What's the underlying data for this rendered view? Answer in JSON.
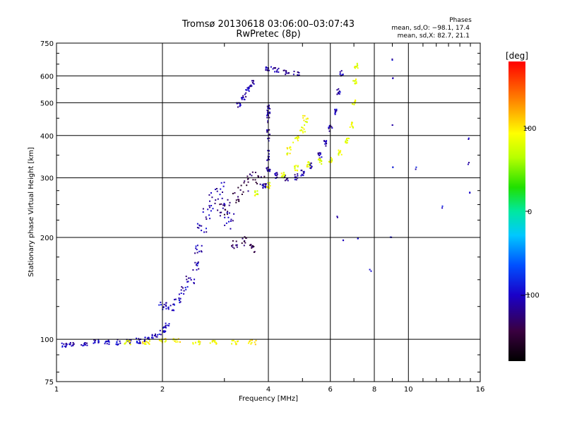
{
  "chart_data": {
    "type": "scatter",
    "title": "Tromsø 20130618 03:06:00–03:07:43",
    "subtitle": "RwPretec (8p)",
    "xlabel": "Frequency [MHz]",
    "ylabel": "Stationary phase Virtual Height [km]",
    "x_scale": "log",
    "y_scale": "log",
    "xlim": [
      1,
      16
    ],
    "ylim": [
      75,
      750
    ],
    "x_ticks": [
      1,
      2,
      4,
      6,
      8,
      10,
      16
    ],
    "x_tick_labels": [
      "1",
      "2",
      "4",
      "6",
      "8",
      "10",
      "16"
    ],
    "y_ticks": [
      75,
      100,
      200,
      300,
      400,
      500,
      600,
      750
    ],
    "y_tick_labels": [
      "75",
      "100",
      "200",
      "300",
      "400",
      "500",
      "600",
      "750"
    ],
    "grid": true,
    "info": {
      "heading": "Phases",
      "line1": "mean, sd,O: −98.1, 17.4",
      "line2": "mean, sd,X:  82.7, 21.1"
    },
    "colorbar": {
      "label": "[deg]",
      "range": [
        -180,
        180
      ],
      "ticks": [
        100,
        0,
        -100
      ],
      "tick_labels": [
        "100",
        "0",
        "−100"
      ]
    },
    "point_groups": [
      {
        "name": "e-region-trace",
        "points": [
          [
            1.05,
            96
          ],
          [
            1.1,
            97
          ],
          [
            1.2,
            97
          ],
          [
            1.3,
            98
          ],
          [
            1.4,
            98
          ],
          [
            1.5,
            98
          ],
          [
            1.6,
            99
          ],
          [
            1.7,
            99
          ],
          [
            1.8,
            100
          ],
          [
            1.9,
            102
          ],
          [
            2.0,
            105
          ],
          [
            2.05,
            110
          ]
        ],
        "phase": -105,
        "spread": [
          0.02,
          0.018
        ]
      },
      {
        "name": "e-region-x-trace",
        "points": [
          [
            1.6,
            98
          ],
          [
            1.8,
            98
          ],
          [
            2.0,
            99
          ],
          [
            2.2,
            99
          ],
          [
            2.5,
            98
          ],
          [
            2.8,
            98
          ],
          [
            3.2,
            98
          ],
          [
            3.6,
            98
          ]
        ],
        "phase": 95,
        "spread": [
          0.025,
          0.015
        ]
      },
      {
        "name": "e-spread-rise",
        "points": [
          [
            2.0,
            125
          ],
          [
            2.1,
            125
          ],
          [
            2.2,
            130
          ],
          [
            2.3,
            140
          ],
          [
            2.4,
            150
          ],
          [
            2.5,
            165
          ],
          [
            2.55,
            185
          ]
        ],
        "phase": -105,
        "spread": [
          0.03,
          0.03
        ]
      },
      {
        "name": "f-spread-cloud-low",
        "points": [
          [
            2.6,
            215
          ],
          [
            2.7,
            235
          ],
          [
            2.8,
            255
          ],
          [
            2.9,
            275
          ],
          [
            3.0,
            245
          ],
          [
            3.1,
            225
          ]
        ],
        "phase": -110,
        "spread": [
          0.035,
          0.06
        ]
      },
      {
        "name": "f-spread-cloud-mid",
        "points": [
          [
            3.0,
            240
          ],
          [
            3.2,
            260
          ],
          [
            3.4,
            280
          ],
          [
            3.6,
            300
          ],
          [
            3.8,
            290
          ]
        ],
        "phase": -140,
        "spread": [
          0.035,
          0.05
        ]
      },
      {
        "name": "f-region-o-trace",
        "points": [
          [
            3.9,
            285
          ],
          [
            4.0,
            320
          ],
          [
            4.2,
            305
          ],
          [
            4.5,
            300
          ],
          [
            4.8,
            302
          ],
          [
            5.0,
            310
          ],
          [
            5.3,
            325
          ],
          [
            5.6,
            350
          ],
          [
            5.8,
            380
          ],
          [
            6.0,
            420
          ],
          [
            6.2,
            470
          ],
          [
            6.35,
            540
          ],
          [
            6.45,
            610
          ]
        ],
        "phase": -110,
        "spread": [
          0.012,
          0.02
        ]
      },
      {
        "name": "f-region-x-trace",
        "points": [
          [
            3.7,
            270
          ],
          [
            4.0,
            285
          ],
          [
            4.4,
            305
          ],
          [
            4.8,
            320
          ],
          [
            5.2,
            330
          ],
          [
            5.6,
            335
          ],
          [
            6.0,
            340
          ],
          [
            6.4,
            355
          ],
          [
            6.7,
            385
          ],
          [
            6.9,
            430
          ],
          [
            7.0,
            500
          ],
          [
            7.05,
            580
          ],
          [
            7.1,
            640
          ]
        ],
        "phase": 85,
        "spread": [
          0.012,
          0.02
        ]
      },
      {
        "name": "f-x-upper",
        "points": [
          [
            4.6,
            360
          ],
          [
            4.8,
            390
          ],
          [
            5.0,
            420
          ],
          [
            5.1,
            450
          ]
        ],
        "phase": 90,
        "spread": [
          0.02,
          0.03
        ]
      },
      {
        "name": "upper-trace",
        "points": [
          [
            3.3,
            490
          ],
          [
            3.4,
            520
          ],
          [
            3.5,
            545
          ],
          [
            3.6,
            570
          ]
        ],
        "phase": -110,
        "spread": [
          0.015,
          0.02
        ]
      },
      {
        "name": "top-trace",
        "points": [
          [
            4.0,
            630
          ],
          [
            4.2,
            625
          ],
          [
            4.5,
            615
          ],
          [
            4.8,
            610
          ]
        ],
        "phase": -115,
        "spread": [
          0.02,
          0.015
        ]
      },
      {
        "name": "low-f-vertical",
        "points": [
          [
            4.0,
            350
          ],
          [
            4.0,
            400
          ],
          [
            4.0,
            450
          ],
          [
            4.0,
            480
          ]
        ],
        "phase": -115,
        "spread": [
          0.01,
          0.04
        ]
      },
      {
        "name": "e-s-trace",
        "points": [
          [
            3.2,
            190
          ],
          [
            3.4,
            195
          ],
          [
            3.6,
            185
          ]
        ],
        "phase": -140,
        "spread": [
          0.02,
          0.03
        ]
      },
      {
        "name": "scattered-noise",
        "points": [
          [
            6.3,
            230
          ],
          [
            7.2,
            200
          ],
          [
            7.8,
            160
          ],
          [
            9.0,
            320
          ],
          [
            9.0,
            430
          ],
          [
            9.0,
            590
          ],
          [
            9.0,
            670
          ],
          [
            14.8,
            390
          ],
          [
            14.8,
            330
          ],
          [
            15.0,
            270
          ],
          [
            12.5,
            245
          ],
          [
            8.9,
            200
          ],
          [
            6.5,
            195
          ],
          [
            10.5,
            320
          ]
        ],
        "phase": -100,
        "spread": [
          0.005,
          0.01
        ]
      }
    ]
  }
}
